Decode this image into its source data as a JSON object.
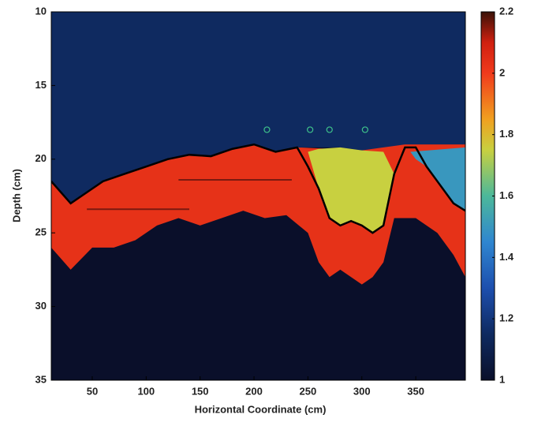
{
  "chart_data": {
    "type": "heatmap",
    "xlabel": "Horizontal Coordinate (cm)",
    "ylabel": "Depth (cm)",
    "xlim": [
      12,
      396
    ],
    "xticks": [
      50,
      100,
      150,
      200,
      250,
      300,
      350
    ],
    "ylim": [
      10,
      35
    ],
    "yticks": [
      10,
      15,
      20,
      25,
      30,
      35
    ],
    "y_reversed": true,
    "clim": [
      1,
      2.2
    ],
    "cticks": [
      1,
      1.2,
      1.4,
      1.6,
      1.8,
      2,
      2.2
    ],
    "background_value": 1,
    "colormap": [
      {
        "value": 1,
        "color": "#0a0f2a"
      },
      {
        "value": 1.15,
        "color": "#0f2a60"
      },
      {
        "value": 1.3,
        "color": "#1d4fae"
      },
      {
        "value": 1.45,
        "color": "#2f86d0"
      },
      {
        "value": 1.6,
        "color": "#4cb89a"
      },
      {
        "value": 1.75,
        "color": "#c8d040"
      },
      {
        "value": 1.85,
        "color": "#f0a020"
      },
      {
        "value": 2,
        "color": "#f03a1c"
      },
      {
        "value": 2.1,
        "color": "#d02010"
      },
      {
        "value": 2.2,
        "color": "#3a1208"
      }
    ],
    "regions": [
      {
        "value": 1.15,
        "x": [
          12,
          396,
          396,
          385,
          370,
          360,
          350,
          340,
          330,
          320,
          310,
          300,
          290,
          280,
          270,
          260,
          250,
          240,
          220,
          200,
          180,
          160,
          140,
          120,
          100,
          80,
          60,
          40,
          30,
          12
        ],
        "y": [
          10,
          10,
          19,
          19,
          19,
          19,
          19,
          19,
          19.2,
          19.5,
          19.4,
          19.4,
          19.3,
          19.2,
          19.2,
          19.2,
          19.2,
          19.2,
          19.5,
          19,
          19.3,
          19.8,
          19.7,
          20,
          20.5,
          21,
          21.5,
          22.5,
          23,
          21.5
        ]
      },
      {
        "value": 2.03,
        "x": [
          12,
          30,
          40,
          60,
          80,
          100,
          120,
          140,
          160,
          180,
          200,
          220,
          240,
          300,
          340,
          396,
          396,
          385,
          370,
          350,
          330,
          320,
          310,
          300,
          290,
          280,
          270,
          260,
          250,
          230,
          210,
          190,
          170,
          150,
          130,
          110,
          90,
          70,
          50,
          30,
          12
        ],
        "y": [
          21.5,
          23,
          22.5,
          21.5,
          21,
          20.5,
          20,
          19.7,
          19.8,
          19.3,
          19,
          19.5,
          19.2,
          19.4,
          19,
          19,
          28,
          26.5,
          25,
          24,
          24,
          27,
          28,
          28.5,
          28,
          27.5,
          28,
          27,
          25,
          23.8,
          24,
          23.5,
          24,
          24.5,
          24,
          24.5,
          25.5,
          26,
          26,
          27.5,
          26
        ]
      },
      {
        "value": 1.75,
        "x": [
          250,
          260,
          280,
          300,
          320,
          330,
          320,
          310,
          300,
          290,
          280,
          270,
          260
        ],
        "y": [
          19.5,
          19.3,
          19.2,
          19.4,
          19.5,
          21,
          24.5,
          25,
          24.5,
          24.2,
          24.5,
          24,
          22
        ]
      },
      {
        "value": 1.5,
        "x": [
          345,
          396,
          396,
          385,
          370,
          360,
          350
        ],
        "y": [
          19.5,
          19.2,
          23.5,
          23,
          21.5,
          20.5,
          20
        ]
      }
    ],
    "interface": {
      "x": [
        12,
        30,
        40,
        60,
        80,
        100,
        120,
        140,
        160,
        180,
        200,
        220,
        240,
        250,
        260,
        270,
        280,
        290,
        300,
        310,
        320,
        330,
        340,
        350,
        360,
        370,
        385,
        396
      ],
      "y": [
        21.5,
        23,
        22.5,
        21.5,
        21,
        20.5,
        20,
        19.7,
        19.8,
        19.3,
        19,
        19.5,
        19.2,
        20.5,
        22,
        24,
        24.5,
        24.2,
        24.5,
        25,
        24.5,
        21,
        19.2,
        19.2,
        20.5,
        21.5,
        23,
        23.5
      ]
    },
    "segments": [
      {
        "x": [
          45,
          140
        ],
        "y": [
          23.4,
          23.4
        ]
      },
      {
        "x": [
          130,
          235
        ],
        "y": [
          21.4,
          21.4
        ]
      }
    ],
    "segment_color": "#7a1a10",
    "markers": {
      "x": [
        212,
        252,
        270,
        303
      ],
      "y": [
        18,
        18,
        18,
        18
      ],
      "color": "#3ec08a"
    }
  }
}
